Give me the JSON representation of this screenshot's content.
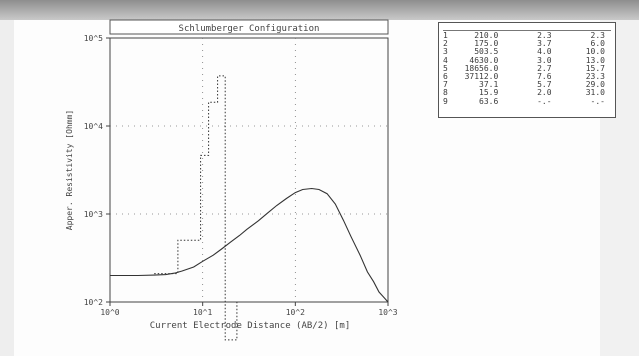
{
  "chart_data": {
    "type": "line",
    "title": "Schlumberger Configuration",
    "xlabel": "Current Electrode Distance (AB/2) [m]",
    "ylabel": "Apper. Resistivity [Ohmm]",
    "xscale": "log",
    "yscale": "log",
    "xlim": [
      1,
      1000
    ],
    "ylim": [
      100,
      100000
    ],
    "x_tick_labels": [
      "10^0",
      "10^1",
      "10^2",
      "10^3"
    ],
    "y_tick_labels": [
      "10^5",
      "10^4",
      "10^3",
      "10^2"
    ],
    "grid": "dotted",
    "series": [
      {
        "style": "solid",
        "x": [
          1,
          2,
          3,
          4,
          5,
          6,
          8,
          10,
          13,
          16,
          20,
          25,
          30,
          40,
          50,
          63,
          80,
          100,
          120,
          150,
          180,
          220,
          270,
          330,
          400,
          500,
          600,
          700,
          800,
          1000
        ],
        "y": [
          200,
          200,
          202,
          205,
          213,
          225,
          250,
          290,
          340,
          400,
          480,
          570,
          670,
          840,
          1020,
          1250,
          1500,
          1750,
          1900,
          1950,
          1900,
          1700,
          1300,
          850,
          550,
          340,
          220,
          170,
          130,
          100
        ]
      },
      {
        "style": "dotted-step",
        "x": [
          3,
          5.4,
          5.4,
          9.5,
          9.5,
          11.6,
          11.6,
          14.5,
          14.5,
          17.5,
          17.5,
          23.4,
          23.4
        ],
        "y": [
          210.0,
          210.0,
          503.5,
          503.5,
          4630.0,
          4630.0,
          18656.0,
          18656.0,
          37112.0,
          37112.0,
          37.1,
          37.1,
          100
        ]
      }
    ]
  },
  "layer_table": {
    "rows": [
      {
        "n": "1",
        "rho": "210.0",
        "thick": "2.3",
        "depth": "2.3"
      },
      {
        "n": "2",
        "rho": "175.0",
        "thick": "3.7",
        "depth": "6.0"
      },
      {
        "n": "3",
        "rho": "503.5",
        "thick": "4.0",
        "depth": "10.0"
      },
      {
        "n": "4",
        "rho": "4630.0",
        "thick": "3.0",
        "depth": "13.0"
      },
      {
        "n": "5",
        "rho": "18656.0",
        "thick": "2.7",
        "depth": "15.7"
      },
      {
        "n": "6",
        "rho": "37112.0",
        "thick": "7.6",
        "depth": "23.3"
      },
      {
        "n": "7",
        "rho": "37.1",
        "thick": "5.7",
        "depth": "29.0"
      },
      {
        "n": "8",
        "rho": "15.9",
        "thick": "2.0",
        "depth": "31.0"
      },
      {
        "n": "9",
        "rho": "63.6",
        "thick": "-.-",
        "depth": "-.-"
      }
    ]
  }
}
